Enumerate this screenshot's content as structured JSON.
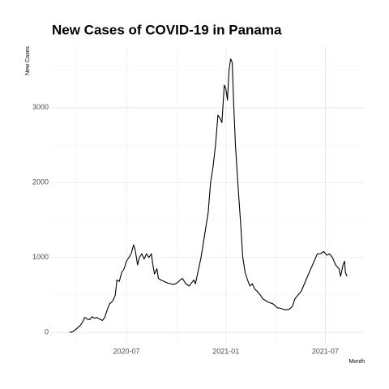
{
  "chart_data": {
    "type": "line",
    "title": "New Cases of COVID-19 in Panama",
    "x_label": "Month",
    "y_label": "New Cases",
    "color": "#000000",
    "grid": true,
    "xlim": [
      2020.125,
      2021.698
    ],
    "ylim": [
      -160,
      3820
    ],
    "xticks": [
      {
        "value": 2020.5,
        "label": "2020-07"
      },
      {
        "value": 2021.0,
        "label": "2021-01"
      },
      {
        "value": 2021.5,
        "label": "2021-07"
      }
    ],
    "minor_xticks": [
      2020.25,
      2020.75,
      2021.25
    ],
    "yticks": [
      0,
      1000,
      2000,
      3000
    ],
    "minor_yticks": [
      500,
      1500,
      2500,
      3500
    ],
    "x": [
      2020.214,
      2020.23,
      2020.25,
      2020.27,
      2020.282,
      2020.29,
      2020.302,
      2020.315,
      2020.327,
      2020.339,
      2020.351,
      2020.363,
      2020.379,
      2020.391,
      2020.403,
      2020.415,
      2020.431,
      2020.444,
      2020.452,
      2020.464,
      2020.476,
      2020.488,
      2020.5,
      2020.512,
      2020.524,
      2020.536,
      2020.544,
      2020.556,
      2020.565,
      2020.577,
      2020.589,
      2020.601,
      2020.613,
      2020.625,
      2020.633,
      2020.641,
      2020.653,
      2020.661,
      2020.673,
      2020.69,
      2020.706,
      2020.722,
      2020.738,
      2020.754,
      2020.77,
      2020.782,
      2020.798,
      2020.815,
      2020.827,
      2020.839,
      2020.847,
      2020.855,
      2020.867,
      2020.875,
      2020.887,
      2020.899,
      2020.911,
      2020.923,
      2020.935,
      2020.948,
      2020.96,
      2020.972,
      2020.98,
      2020.992,
      2021.0,
      2021.008,
      2021.016,
      2021.024,
      2021.032,
      2021.04,
      2021.048,
      2021.06,
      2021.073,
      2021.085,
      2021.097,
      2021.109,
      2021.121,
      2021.133,
      2021.145,
      2021.157,
      2021.173,
      2021.185,
      2021.202,
      2021.218,
      2021.238,
      2021.258,
      2021.278,
      2021.298,
      2021.319,
      2021.335,
      2021.347,
      2021.363,
      2021.379,
      2021.395,
      2021.411,
      2021.427,
      2021.444,
      2021.46,
      2021.476,
      2021.492,
      2021.508,
      2021.52,
      2021.536,
      2021.552,
      2021.569,
      2021.577,
      2021.589,
      2021.597,
      2021.601,
      2021.609
    ],
    "values": [
      0,
      10,
      50,
      100,
      150,
      200,
      180,
      170,
      210,
      190,
      200,
      180,
      160,
      200,
      300,
      380,
      420,
      500,
      700,
      680,
      800,
      850,
      950,
      1000,
      1050,
      1170,
      1100,
      900,
      1000,
      1050,
      980,
      1050,
      1000,
      1050,
      900,
      780,
      850,
      720,
      700,
      680,
      660,
      650,
      640,
      660,
      700,
      720,
      650,
      620,
      660,
      700,
      650,
      750,
      900,
      1000,
      1200,
      1400,
      1600,
      2000,
      2200,
      2500,
      2900,
      2850,
      2800,
      3300,
      3250,
      3100,
      3500,
      3650,
      3600,
      3000,
      2500,
      2000,
      1500,
      1000,
      800,
      700,
      620,
      650,
      580,
      550,
      500,
      450,
      420,
      400,
      380,
      330,
      320,
      300,
      310,
      350,
      450,
      500,
      550,
      650,
      750,
      850,
      950,
      1050,
      1050,
      1080,
      1030,
      1050,
      1000,
      900,
      850,
      750,
      900,
      950,
      800,
      750
    ]
  }
}
